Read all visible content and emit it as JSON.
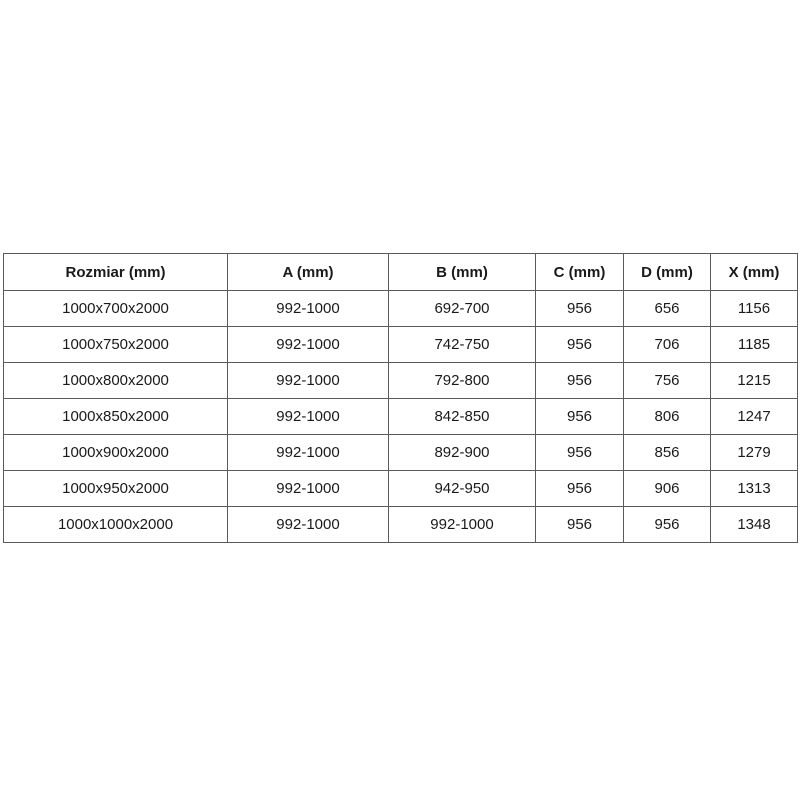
{
  "colors": {
    "page_background": "#ffffff",
    "table_border": "#5a5a5a",
    "text": "#1a1a1a",
    "cell_background": "#ffffff"
  },
  "table": {
    "headers": [
      "Rozmiar (mm)",
      "A (mm)",
      "B (mm)",
      "C (mm)",
      "D (mm)",
      "X (mm)"
    ],
    "rows": [
      [
        "1000x700x2000",
        "992-1000",
        "692-700",
        "956",
        "656",
        "1156"
      ],
      [
        "1000x750x2000",
        "992-1000",
        "742-750",
        "956",
        "706",
        "1185"
      ],
      [
        "1000x800x2000",
        "992-1000",
        "792-800",
        "956",
        "756",
        "1215"
      ],
      [
        "1000x850x2000",
        "992-1000",
        "842-850",
        "956",
        "806",
        "1247"
      ],
      [
        "1000x900x2000",
        "992-1000",
        "892-900",
        "956",
        "856",
        "1279"
      ],
      [
        "1000x950x2000",
        "992-1000",
        "942-950",
        "956",
        "906",
        "1313"
      ],
      [
        "1000x1000x2000",
        "992-1000",
        "992-1000",
        "956",
        "956",
        "1348"
      ]
    ]
  }
}
